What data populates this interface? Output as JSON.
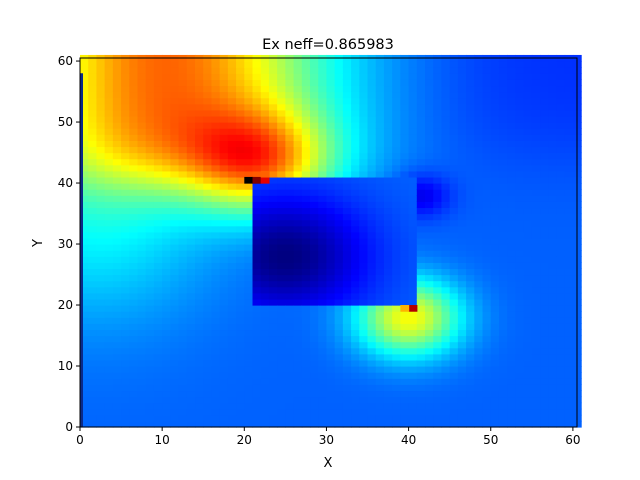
{
  "chart_data": {
    "type": "heatmap",
    "title": "Ex neff=0.865983",
    "xlabel": "X",
    "ylabel": "Y",
    "xlim": [
      0,
      60.5
    ],
    "ylim": [
      0,
      60.5
    ],
    "xticks": [
      0,
      10,
      20,
      30,
      40,
      50,
      60
    ],
    "yticks": [
      0,
      10,
      20,
      30,
      40,
      50,
      60
    ],
    "colormap": "jet",
    "grid": false,
    "colorbar": false,
    "waveguide_core": {
      "x": [
        21,
        41
      ],
      "y": [
        20,
        40.5
      ]
    },
    "field_features": [
      {
        "name": "hot-spot-upper-left-corner",
        "x": 21.5,
        "y": 41,
        "level": 1.0
      },
      {
        "name": "hot-spot-lower-right-corner",
        "x": 41,
        "y": 20,
        "level": 0.85
      },
      {
        "name": "minimum-core-center",
        "x": 25,
        "y": 28,
        "level": 0.0
      },
      {
        "name": "high-field-top-left-region",
        "x": 15,
        "y": 55,
        "level": 0.62
      }
    ]
  }
}
